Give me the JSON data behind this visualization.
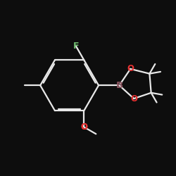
{
  "background_color": "#0d0d0d",
  "bond_color": "#e8e8e8",
  "atom_colors": {
    "F": "#6db86d",
    "O": "#e83232",
    "B": "#8b5560",
    "C": "#e8e8e8"
  },
  "bond_width": 1.6,
  "font_size_atoms": 8.5
}
